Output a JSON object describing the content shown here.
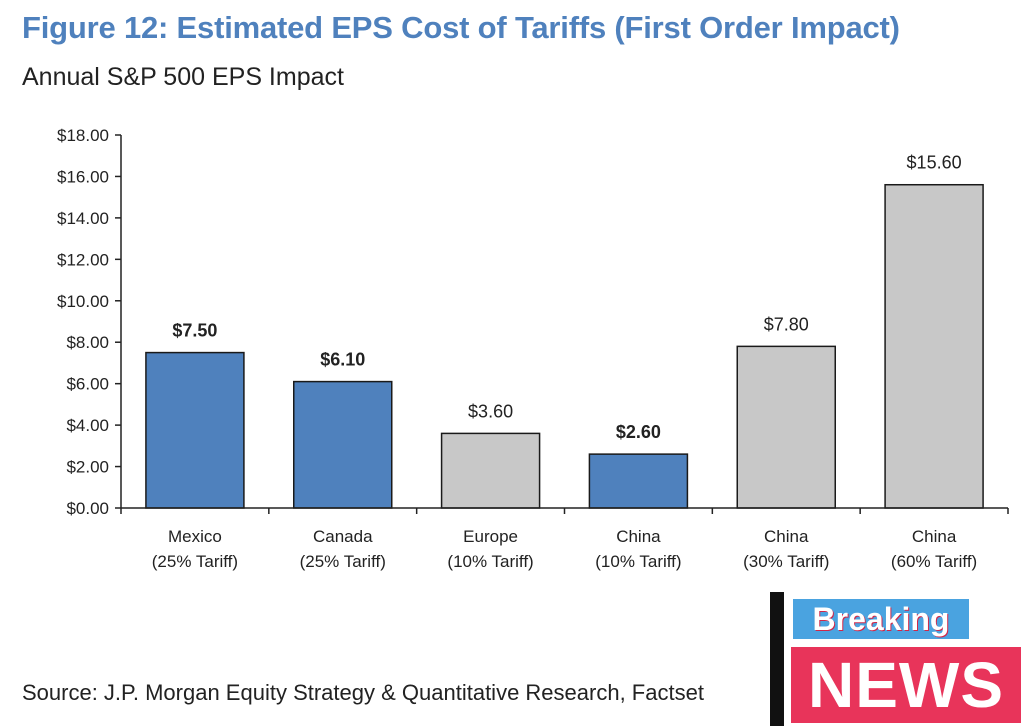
{
  "figure": {
    "title": "Figure 12: Estimated EPS Cost of Tariffs (First Order Impact)",
    "subtitle": "Annual S&P 500 EPS Impact",
    "source": "Source: J.P. Morgan Equity Strategy & Quantitative Research, Factset"
  },
  "badge": {
    "top_text": "Breaking",
    "bottom_text": "NEWS"
  },
  "colors": {
    "title": "#4f81bd",
    "bar_blue": "#4f81bd",
    "bar_gray": "#c8c8c8",
    "bar_outline": "#1a1a1a"
  },
  "chart_data": {
    "type": "bar",
    "categories": [
      [
        "Mexico",
        "(25% Tariff)"
      ],
      [
        "Canada",
        "(25% Tariff)"
      ],
      [
        "Europe",
        "(10% Tariff)"
      ],
      [
        "China",
        "(10% Tariff)"
      ],
      [
        "China",
        "(30% Tariff)"
      ],
      [
        "China",
        "(60% Tariff)"
      ]
    ],
    "values": [
      7.5,
      6.1,
      3.6,
      2.6,
      7.8,
      15.6
    ],
    "data_labels": [
      "$7.50",
      "$6.10",
      "$3.60",
      "$2.60",
      "$7.80",
      "$15.60"
    ],
    "bar_colors": [
      "blue",
      "blue",
      "gray",
      "blue",
      "gray",
      "gray"
    ],
    "label_bold": [
      true,
      true,
      false,
      true,
      false,
      false
    ],
    "yticks": [
      0,
      2,
      4,
      6,
      8,
      10,
      12,
      14,
      16,
      18
    ],
    "ytick_labels": [
      "$0.00",
      "$2.00",
      "$4.00",
      "$6.00",
      "$8.00",
      "$10.00",
      "$12.00",
      "$14.00",
      "$16.00",
      "$18.00"
    ],
    "ylim": [
      0,
      18
    ],
    "grid": false,
    "legend": "none"
  }
}
